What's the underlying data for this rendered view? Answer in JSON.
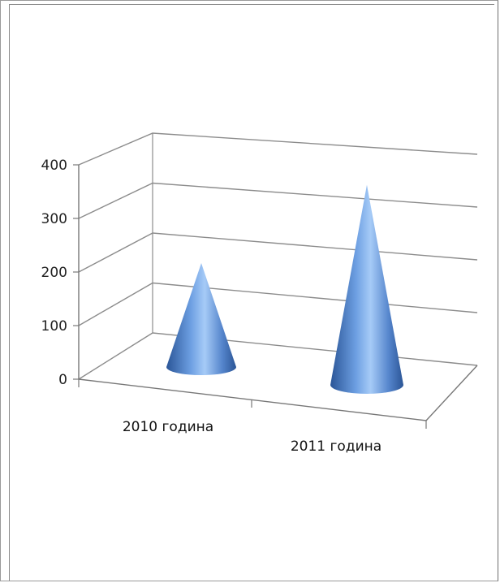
{
  "chart_data": {
    "type": "bar",
    "shape": "cone",
    "view": "3d",
    "categories": [
      "2010 година",
      "2011 година"
    ],
    "series": [
      {
        "values": [
          200,
          385
        ]
      }
    ],
    "y_ticks": [
      "0",
      "100",
      "200",
      "300",
      "400"
    ],
    "ylim": [
      0,
      400
    ],
    "grid": true,
    "legend": "none",
    "colors": {
      "cone_light": "#9cc3f4",
      "cone_mid": "#5b8fd6",
      "cone_dark": "#234e8c",
      "grid": "#8c8c8c"
    }
  }
}
